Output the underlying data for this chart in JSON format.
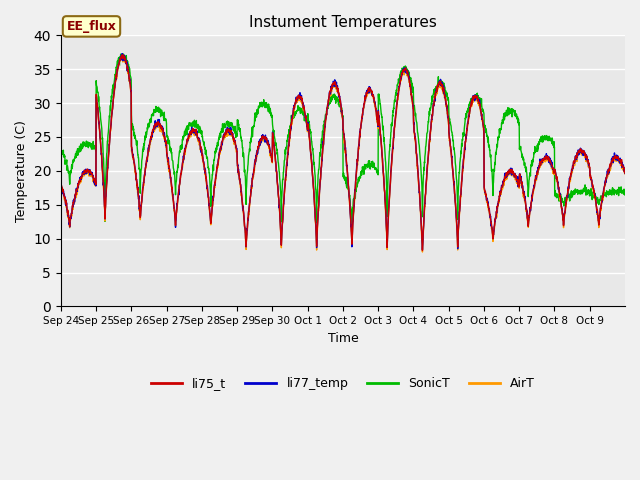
{
  "title": "Instument Temperatures",
  "xlabel": "Time",
  "ylabel": "Temperature (C)",
  "ylim": [
    0,
    40
  ],
  "yticks": [
    0,
    5,
    10,
    15,
    20,
    25,
    30,
    35,
    40
  ],
  "background_color": "#e8e8e8",
  "annotation_text": "EE_flux",
  "annotation_color": "#8B0000",
  "annotation_bg": "#ffffcc",
  "annotation_border": "#8B6914",
  "line_colors": {
    "li75_t": "#cc0000",
    "li77_temp": "#0000cc",
    "SonicT": "#00bb00",
    "AirT": "#ff9900"
  },
  "x_tick_labels": [
    "Sep 24",
    "Sep 25",
    "Sep 26",
    "Sep 27",
    "Sep 28",
    "Sep 29",
    "Sep 30",
    "Oct 1",
    "Oct 2",
    "Oct 3",
    "Oct 4",
    "Oct 5",
    "Oct 6",
    "Oct 7",
    "Oct 8",
    "Oct 9"
  ],
  "legend_labels": [
    "li75_t",
    "li77_temp",
    "SonicT",
    "AirT"
  ],
  "day_peaks_base": [
    20,
    37,
    27,
    26,
    26,
    25,
    31,
    33,
    32,
    35,
    33,
    31,
    20,
    22,
    23,
    22
  ],
  "day_mins_base": [
    12,
    13,
    13,
    12,
    12,
    9,
    9,
    9,
    9,
    9,
    8,
    9,
    10,
    12,
    12,
    12
  ],
  "sonic_peaks": [
    24,
    37,
    29,
    27,
    27,
    30,
    29,
    31,
    21,
    35,
    33,
    31,
    29,
    25,
    17,
    17
  ],
  "sonic_mins": [
    18,
    13,
    17,
    16,
    15,
    15,
    13,
    12,
    12,
    13,
    13,
    13,
    16,
    16,
    15,
    15
  ]
}
